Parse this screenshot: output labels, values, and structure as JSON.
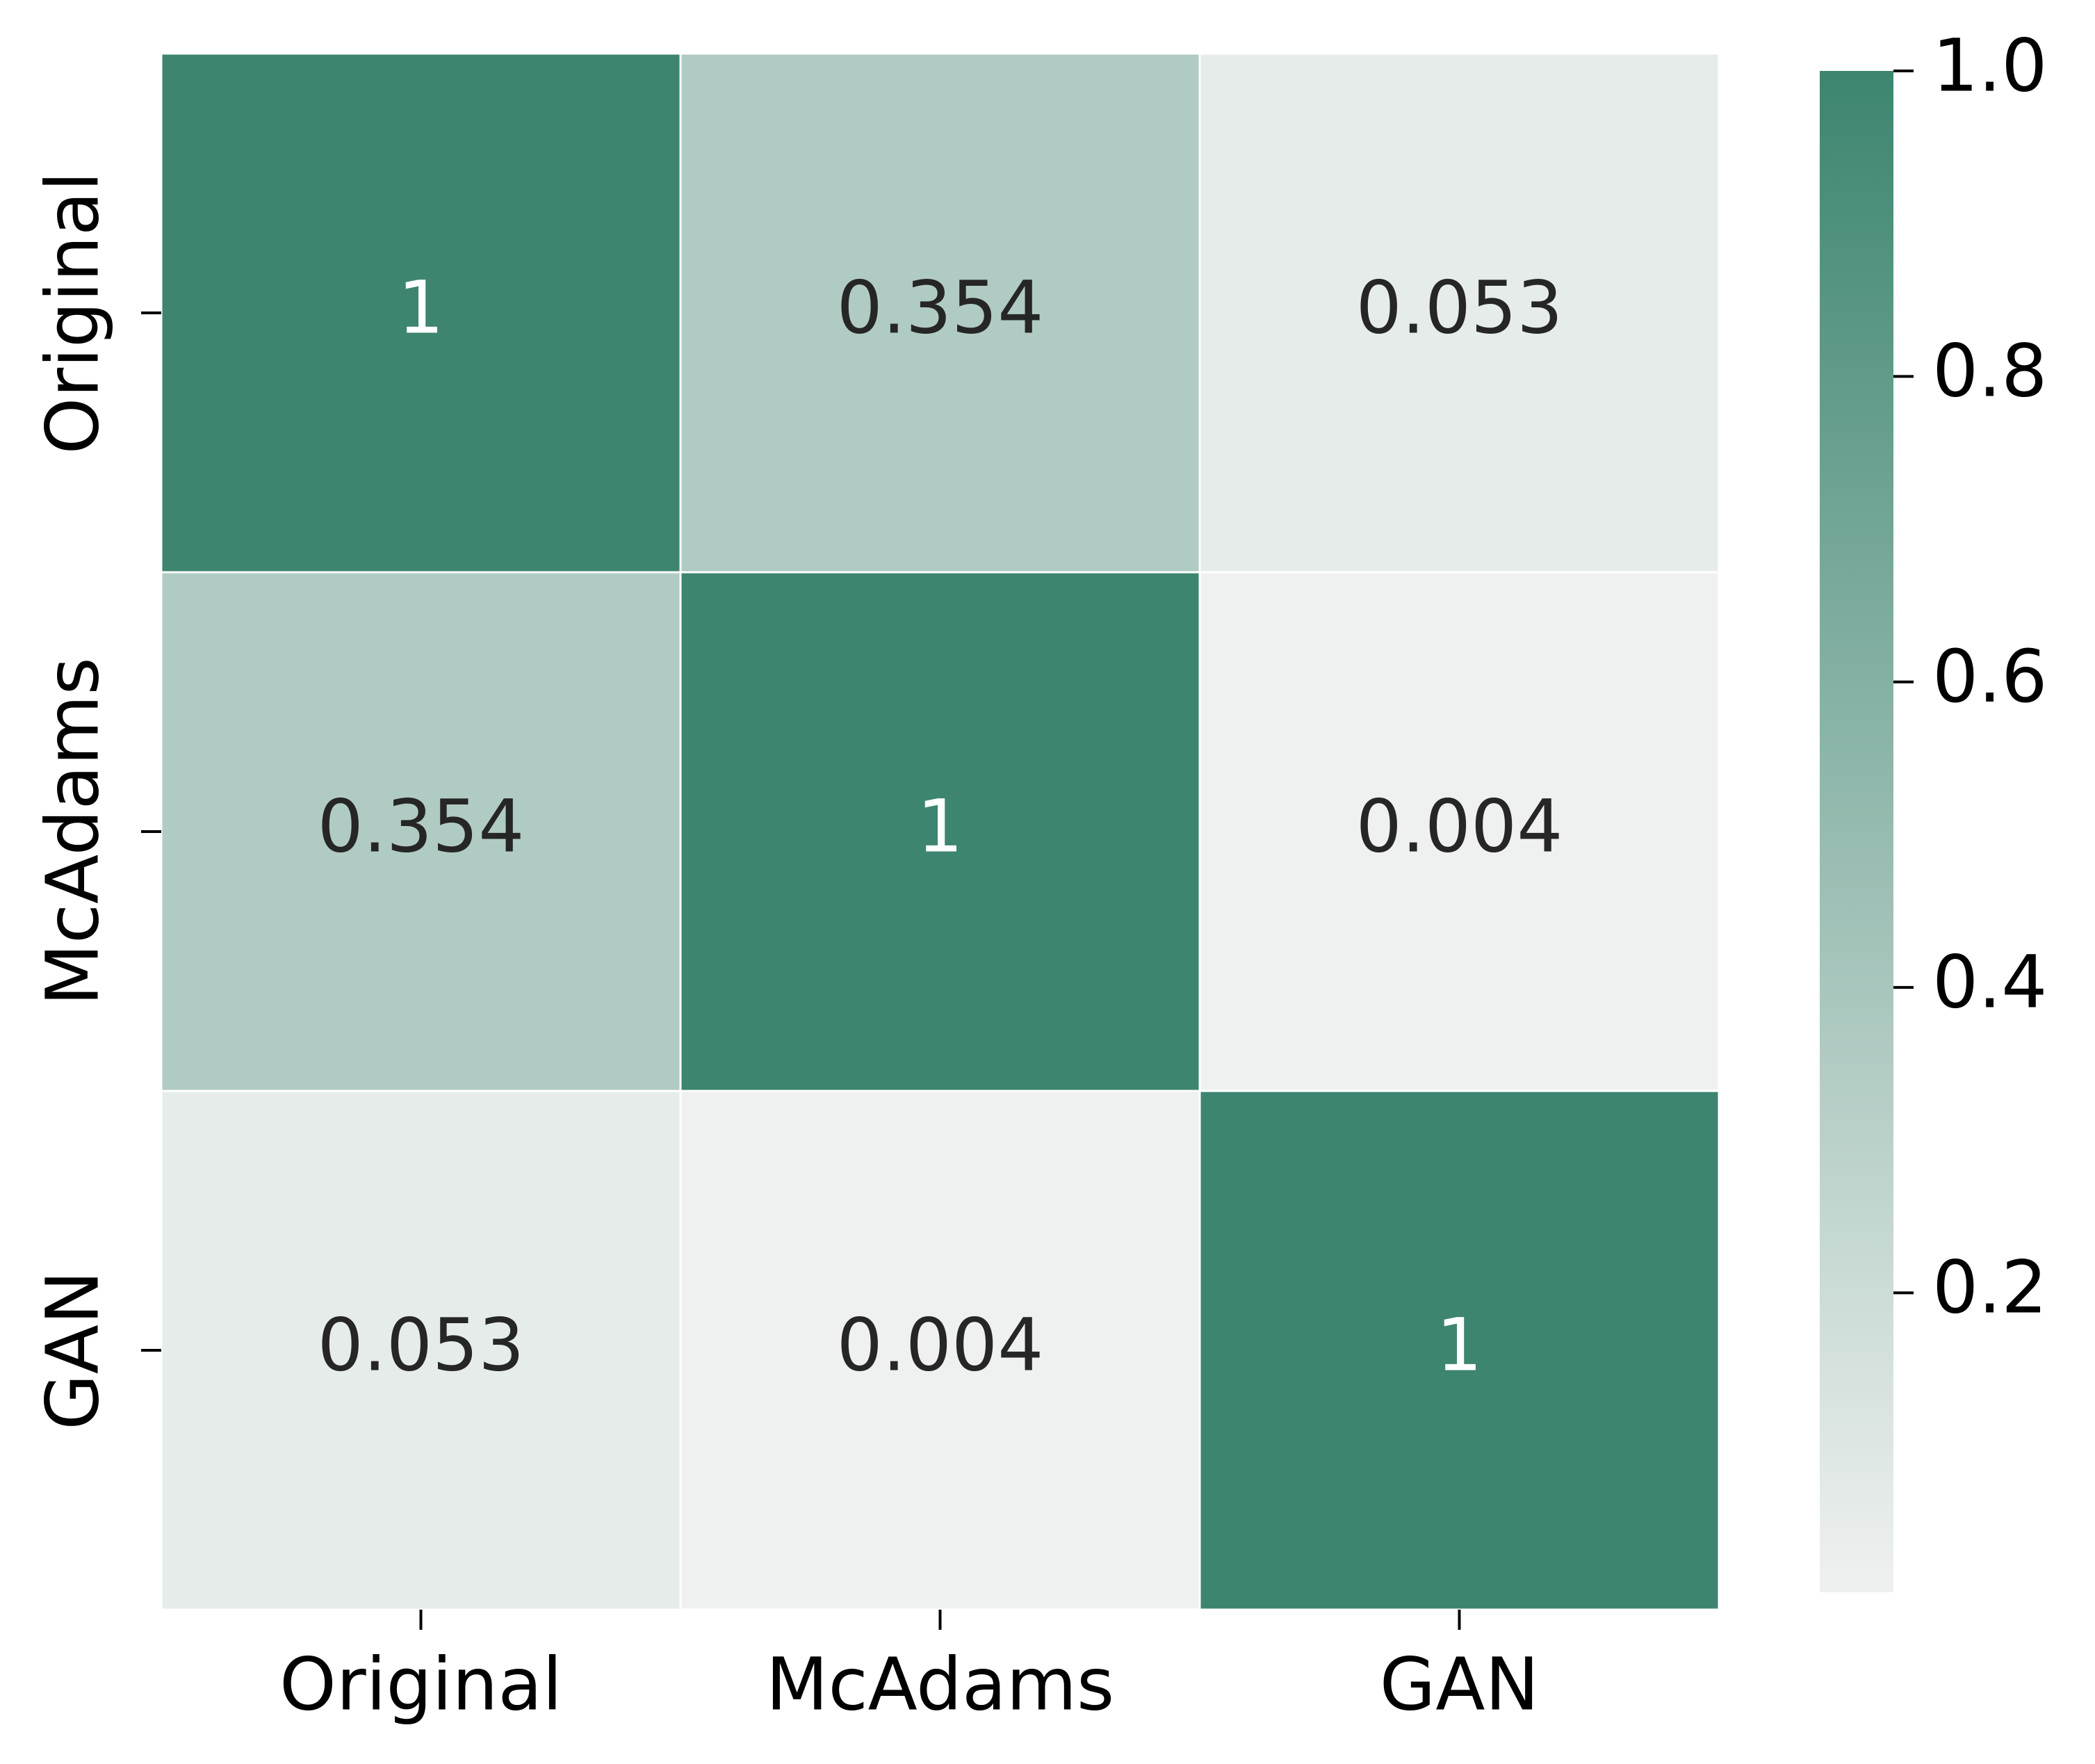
{
  "chart_data": {
    "type": "heatmap",
    "x_categories": [
      "Original",
      "McAdams",
      "GAN"
    ],
    "y_categories": [
      "Original",
      "McAdams",
      "GAN"
    ],
    "values": [
      [
        1,
        0.354,
        0.053
      ],
      [
        0.354,
        1,
        0.004
      ],
      [
        0.053,
        0.004,
        1
      ]
    ],
    "colors": [
      "#eff1f0",
      "#3d8570"
    ],
    "clim": [
      0.004,
      1
    ],
    "colorbar_ticks": [
      0.2,
      0.4,
      0.6,
      0.8,
      {
        "value": 1,
        "label": "1.0"
      }
    ]
  }
}
